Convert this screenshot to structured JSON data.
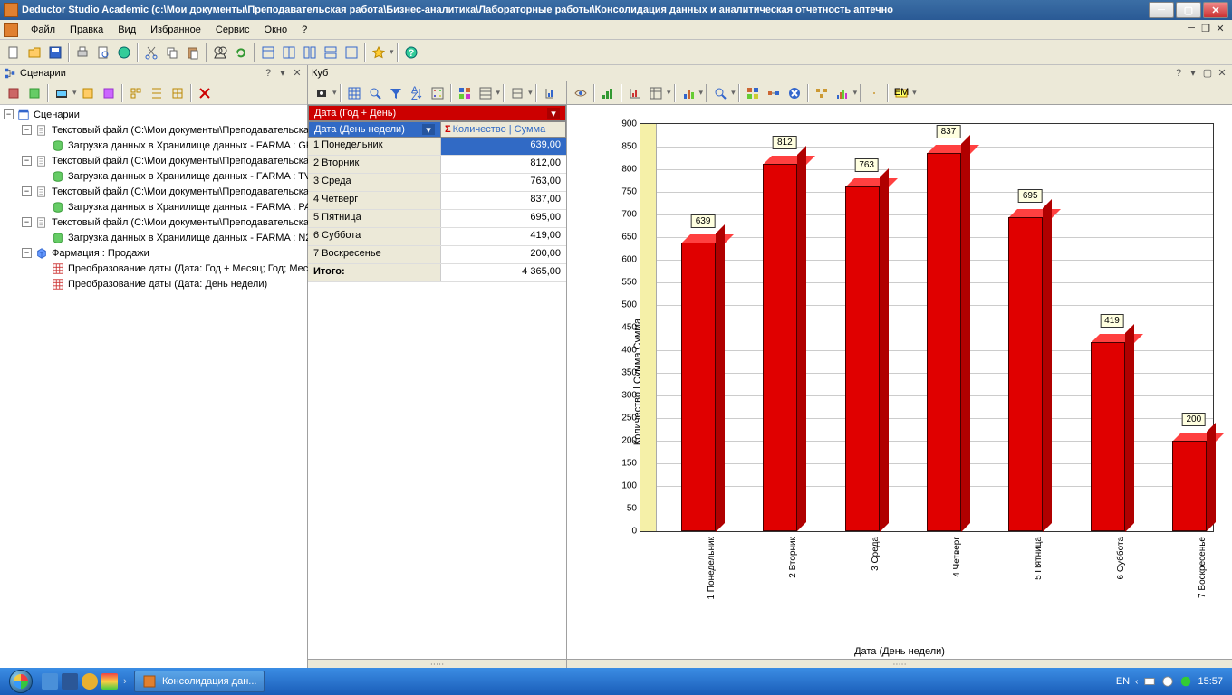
{
  "window": {
    "title": "Deductor Studio Academic (с:\\Мои документы\\Преподавательская работа\\Бизнес-аналитика\\Лабораторные работы\\Консолидация данных и аналитическая отчетность аптечно"
  },
  "menu": [
    "Файл",
    "Правка",
    "Вид",
    "Избранное",
    "Сервис",
    "Окно",
    "?"
  ],
  "left_panel": {
    "title": "Сценарии",
    "root": "Сценарии",
    "nodes": [
      {
        "indent": 1,
        "exp": "-",
        "icon": "file",
        "label": "Текстовый файл (C:\\Мои документы\\Преподавательска"
      },
      {
        "indent": 2,
        "exp": "",
        "icon": "db",
        "label": "Загрузка данных в Хранилище данных - FARMA : GR"
      },
      {
        "indent": 1,
        "exp": "-",
        "icon": "file",
        "label": "Текстовый файл (C:\\Мои документы\\Преподавательска"
      },
      {
        "indent": 2,
        "exp": "",
        "icon": "db",
        "label": "Загрузка данных в Хранилище данных - FARMA : TV_"
      },
      {
        "indent": 1,
        "exp": "-",
        "icon": "file",
        "label": "Текстовый файл (C:\\Мои документы\\Преподавательска"
      },
      {
        "indent": 2,
        "exp": "",
        "icon": "db",
        "label": "Загрузка данных в Хранилище данных - FARMA : PAR"
      },
      {
        "indent": 1,
        "exp": "-",
        "icon": "file",
        "label": "Текстовый файл (C:\\Мои документы\\Преподавательска"
      },
      {
        "indent": 2,
        "exp": "",
        "icon": "db",
        "label": "Загрузка данных в Хранилище данных - FARMA : N24"
      },
      {
        "indent": 1,
        "exp": "-",
        "icon": "cube",
        "label": "Фармация : Продажи"
      },
      {
        "indent": 2,
        "exp": "",
        "icon": "grid",
        "label": "Преобразование даты (Дата: Год + Месяц; Год; Мес"
      },
      {
        "indent": 2,
        "exp": "",
        "icon": "grid",
        "label": "Преобразование даты (Дата: День недели)"
      }
    ]
  },
  "cube_panel": {
    "title": "Куб"
  },
  "cube_table": {
    "dim_rows": "Дата (Год + День)",
    "dim_cols": "Дата (День недели)",
    "measure": "Количество | Сумма",
    "rows": [
      {
        "label": "1 Понедельник",
        "value": "639,00",
        "num": 639
      },
      {
        "label": "2 Вторник",
        "value": "812,00",
        "num": 812
      },
      {
        "label": "3 Среда",
        "value": "763,00",
        "num": 763
      },
      {
        "label": "4 Четверг",
        "value": "837,00",
        "num": 837
      },
      {
        "label": "5 Пятница",
        "value": "695,00",
        "num": 695
      },
      {
        "label": "6 Суббота",
        "value": "419,00",
        "num": 419
      },
      {
        "label": "7 Воскресенье",
        "value": "200,00",
        "num": 200
      }
    ],
    "total_label": "Итого:",
    "total_value": "4 365,00"
  },
  "chart": {
    "type": "bar3d",
    "ylabel": "Количество | Сумма Сумма",
    "xlabel": "Дата (День недели)",
    "ylim": [
      0,
      900
    ],
    "ytick_step": 50,
    "bar_color": "#e00000",
    "bar_top_color": "#ff4040",
    "bar_side_color": "#b00000",
    "background_color": "#ffffff",
    "grid_color": "#cccccc",
    "label_bg": "#ffffe0",
    "back_wall": "#f5f0a8",
    "categories": [
      "1 Понедельник",
      "2 Вторник",
      "3 Среда",
      "4 Четверг",
      "5 Пятница",
      "6 Суббота",
      "7 Воскресенье"
    ],
    "values": [
      639,
      812,
      763,
      837,
      695,
      419,
      200
    ]
  },
  "taskbar": {
    "task": "Консолидация дан...",
    "lang": "EN",
    "time": "15:57"
  }
}
